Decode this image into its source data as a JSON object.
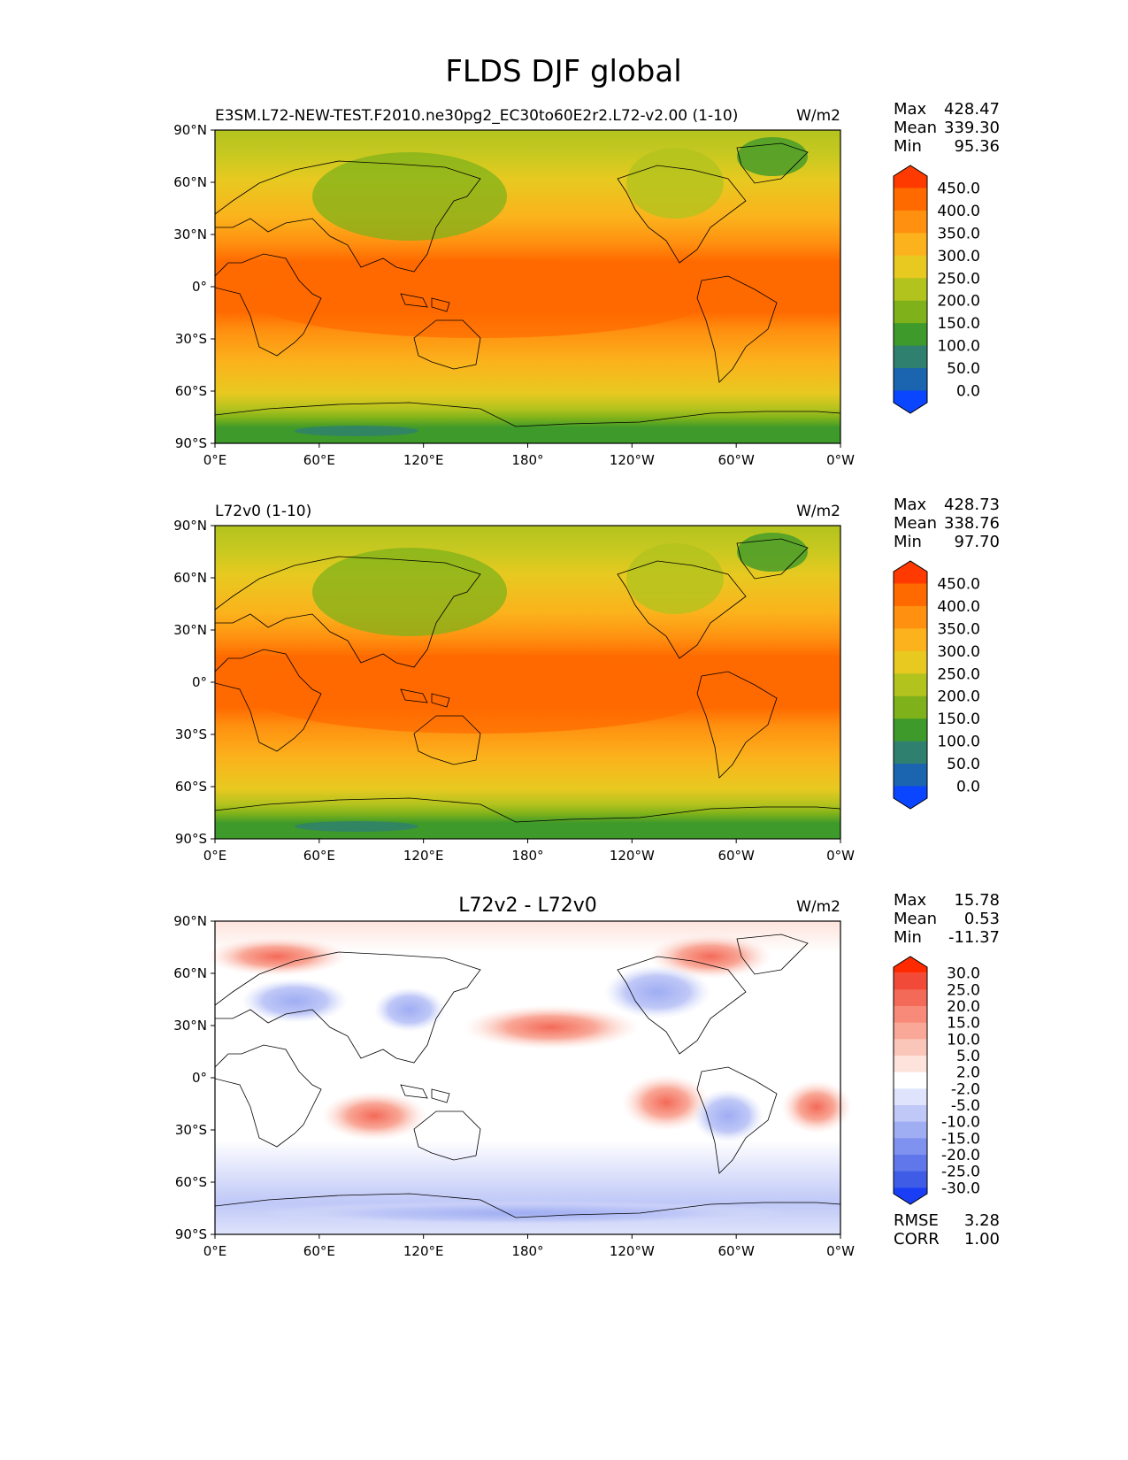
{
  "title": "FLDS DJF global",
  "colors": {
    "frame": "#000000",
    "coast": "#000000",
    "land_deco": "none"
  },
  "chart_data": [
    {
      "type": "heatmap",
      "name": "test",
      "title": "E3SM.L72-NEW-TEST.F2010.ne30pg2_EC30to60E2r2.L72-v2.00 (1-10)",
      "center_title": "",
      "units": "W/m2",
      "stats": [
        {
          "label": "Max",
          "value": "428.47"
        },
        {
          "label": "Mean",
          "value": "339.30"
        },
        {
          "label": "Min",
          "value": "95.36"
        }
      ],
      "xticks": [
        "0°E",
        "60°E",
        "120°E",
        "180°",
        "120°W",
        "60°W",
        "0°W"
      ],
      "yticks": [
        "90°N",
        "60°N",
        "30°N",
        "0°",
        "30°S",
        "60°S",
        "90°S"
      ],
      "xlim": [
        0,
        360
      ],
      "ylim": [
        -90,
        90
      ],
      "colorbar": {
        "labels": [
          "450.0",
          "400.0",
          "350.0",
          "300.0",
          "250.0",
          "200.0",
          "150.0",
          "100.0",
          "50.0",
          "0.0"
        ],
        "colors": [
          "#ff3a00",
          "#ff6a00",
          "#ff9010",
          "#fbb21c",
          "#e8c920",
          "#b3c31e",
          "#7fb21a",
          "#3e9a2a",
          "#308070",
          "#1a64b0",
          "#0a45ff"
        ]
      },
      "footer": []
    },
    {
      "type": "heatmap",
      "name": "reference",
      "title": "L72v0 (1-10)",
      "center_title": "",
      "units": "W/m2",
      "stats": [
        {
          "label": "Max",
          "value": "428.73"
        },
        {
          "label": "Mean",
          "value": "338.76"
        },
        {
          "label": "Min",
          "value": "97.70"
        }
      ],
      "xticks": [
        "0°E",
        "60°E",
        "120°E",
        "180°",
        "120°W",
        "60°W",
        "0°W"
      ],
      "yticks": [
        "90°N",
        "60°N",
        "30°N",
        "0°",
        "30°S",
        "60°S",
        "90°S"
      ],
      "xlim": [
        0,
        360
      ],
      "ylim": [
        -90,
        90
      ],
      "colorbar": {
        "labels": [
          "450.0",
          "400.0",
          "350.0",
          "300.0",
          "250.0",
          "200.0",
          "150.0",
          "100.0",
          "50.0",
          "0.0"
        ],
        "colors": [
          "#ff3a00",
          "#ff6a00",
          "#ff9010",
          "#fbb21c",
          "#e8c920",
          "#b3c31e",
          "#7fb21a",
          "#3e9a2a",
          "#308070",
          "#1a64b0",
          "#0a45ff"
        ]
      },
      "footer": []
    },
    {
      "type": "heatmap",
      "name": "difference",
      "title": "",
      "center_title": "L72v2 - L72v0",
      "units": "W/m2",
      "stats": [
        {
          "label": "Max",
          "value": "15.78"
        },
        {
          "label": "Mean",
          "value": "0.53"
        },
        {
          "label": "Min",
          "value": "-11.37"
        }
      ],
      "xticks": [
        "0°E",
        "60°E",
        "120°E",
        "180°",
        "120°W",
        "60°W",
        "0°W"
      ],
      "yticks": [
        "90°N",
        "60°N",
        "30°N",
        "0°",
        "30°S",
        "60°S",
        "90°S"
      ],
      "xlim": [
        0,
        360
      ],
      "ylim": [
        -90,
        90
      ],
      "colorbar": {
        "labels": [
          "30.0",
          "25.0",
          "20.0",
          "15.0",
          "10.0",
          "5.0",
          "2.0",
          "-2.0",
          "-5.0",
          "-10.0",
          "-15.0",
          "-20.0",
          "-25.0",
          "-30.0"
        ],
        "colors": [
          "#ff2a00",
          "#f24a38",
          "#f46a58",
          "#f78a78",
          "#f9a898",
          "#fbc6ba",
          "#fde3dc",
          "#ffffff",
          "#dfe3fb",
          "#bfc8f7",
          "#9fadf3",
          "#7f92ef",
          "#5f77eb",
          "#3f5ce7",
          "#1a3ef5"
        ]
      },
      "footer": [
        {
          "label": "RMSE",
          "value": "3.28"
        },
        {
          "label": "CORR",
          "value": "1.00"
        }
      ]
    }
  ]
}
